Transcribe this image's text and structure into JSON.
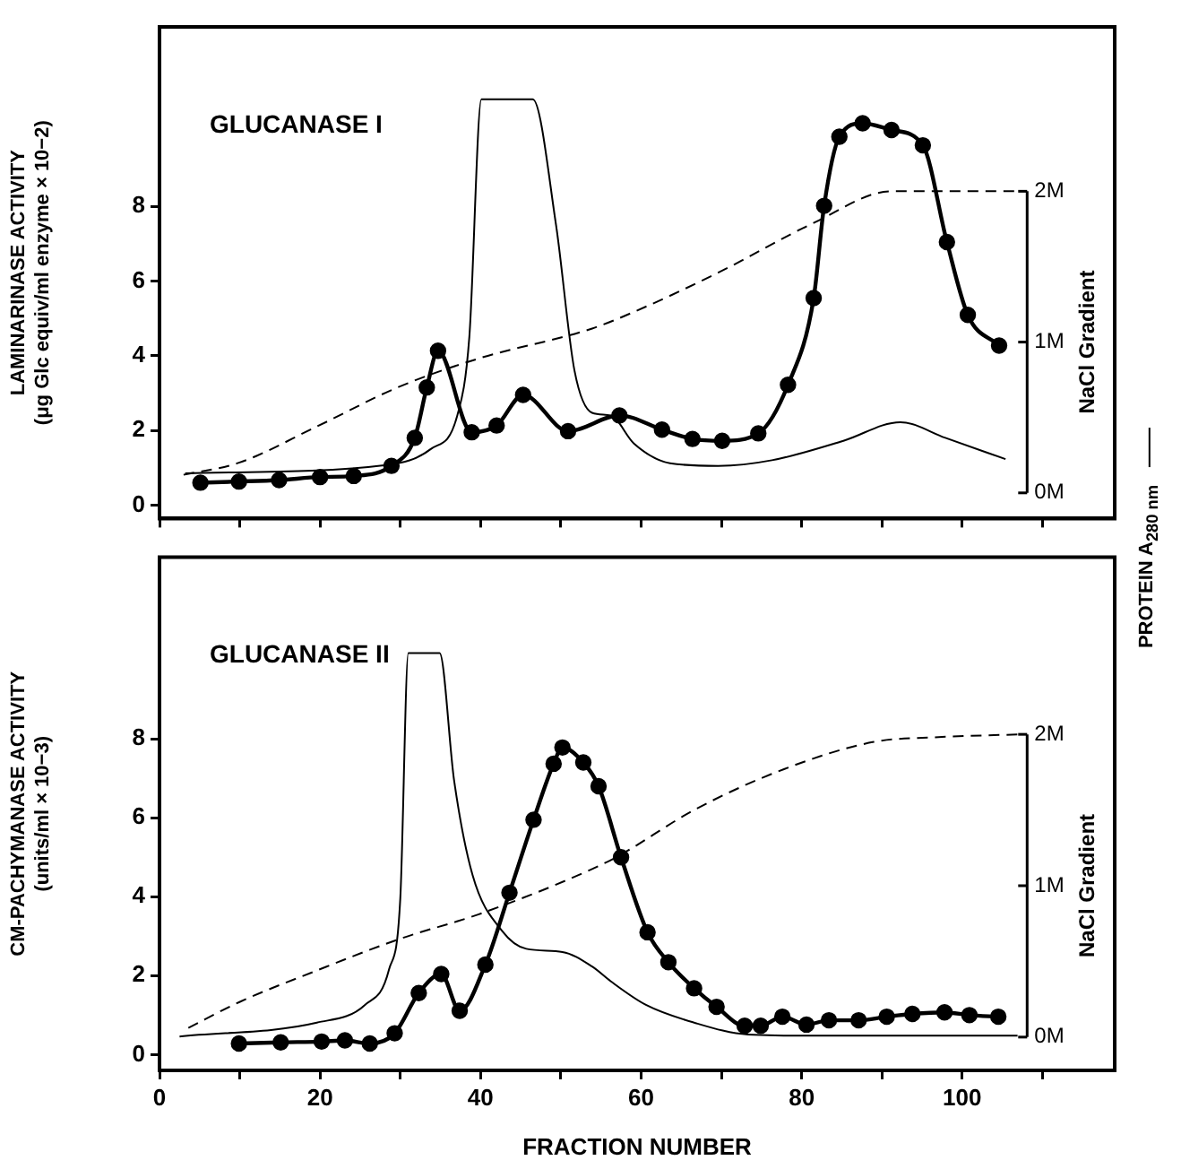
{
  "chart_data": [
    {
      "type": "line",
      "annotations": [
        "GLUCANASE I"
      ],
      "ylabel": "LAMINARINASE ACTIVITY\n(μg Glc equiv/ml enzyme × 10−2)",
      "y2label": "NaCl Gradient",
      "tick_labels": "y",
      "legend": "right",
      "xlim": [
        0,
        119
      ],
      "xticks": [
        {
          "value": 0,
          "label": null
        },
        {
          "value": 10,
          "label": null
        },
        {
          "value": 20,
          "label": null
        },
        {
          "value": 30,
          "label": null
        },
        {
          "value": 40,
          "label": null
        },
        {
          "value": 50,
          "label": null
        },
        {
          "value": 60,
          "label": null
        },
        {
          "value": 70,
          "label": null
        },
        {
          "value": 80,
          "label": null
        },
        {
          "value": 90,
          "label": null
        },
        {
          "value": 100,
          "label": null
        },
        {
          "value": 110,
          "label": null
        }
      ],
      "ylim": [
        -0.36,
        12.8
      ],
      "yticks": [
        0,
        2,
        4,
        6,
        8
      ],
      "y2lim": [
        -0.17,
        3.09
      ],
      "y2ticks": [
        {
          "value": 0,
          "label": "0M"
        },
        {
          "value": 1,
          "label": "1M"
        },
        {
          "value": 2,
          "label": "2M"
        }
      ],
      "series": [
        {
          "color": "#000000",
          "marker": "circle",
          "line_style": "solid",
          "x": [
            5.1,
            9.9,
            14.9,
            20,
            24.2,
            28.9,
            31.8,
            33.3,
            34.7,
            38.9,
            42,
            45.3,
            50.9,
            57.3,
            62.6,
            66.4,
            70.1,
            74.6,
            78.3,
            81.5,
            82.8,
            84.7,
            87.6,
            91.2,
            95.1,
            98.1,
            100.7,
            104.6
          ],
          "values": [
            0.6,
            0.63,
            0.67,
            0.75,
            0.78,
            1.05,
            1.8,
            3.15,
            4.13,
            1.95,
            2.13,
            2.95,
            1.98,
            2.4,
            2.02,
            1.77,
            1.72,
            1.92,
            3.22,
            5.54,
            8.01,
            9.86,
            10.22,
            10.04,
            9.63,
            7.04,
            5.09,
            4.27
          ]
        },
        {
          "name": "PROTEIN A$_{280 nm}$",
          "color": "#000000",
          "line_style": "solid",
          "x": [
            3.2,
            28.5,
            33.8,
            37.1,
            38.6,
            40.1,
            46.5,
            49.4,
            51.7,
            53.9,
            56.2,
            59.1,
            63.6,
            69.6,
            76.3,
            85.2,
            92.3,
            97.9,
            105.4
          ],
          "values": [
            0.85,
            1.08,
            1.5,
            2.4,
            4.5,
            10.86,
            10.86,
            7.5,
            3.6,
            2.47,
            2.4,
            1.65,
            1.12,
            1.05,
            1.2,
            1.72,
            2.22,
            1.8,
            1.23
          ]
        },
        {
          "color": "#000000",
          "line_style": "dashed",
          "axis": "y2",
          "x": [
            3,
            9.9,
            19.6,
            29.7,
            39.7,
            53.9,
            59.1,
            69.6,
            81.5,
            91.2,
            97.9,
            107.2
          ],
          "values": [
            0.12,
            0.2,
            0.44,
            0.7,
            0.89,
            1.09,
            1.2,
            1.46,
            1.79,
            2,
            2,
            2
          ]
        }
      ]
    },
    {
      "type": "line",
      "annotations": [
        "GLUCANASE II"
      ],
      "xlabel": "FRACTION NUMBER",
      "ylabel": "CM-PACHYMANASE ACTIVITY\n(units/ml × 10−3)",
      "y2label": "NaCl Gradient",
      "xlim": [
        0,
        119
      ],
      "xticks": [
        0,
        {
          "value": 10,
          "label": null
        },
        20,
        {
          "value": 30,
          "label": null
        },
        40,
        {
          "value": 50,
          "label": null
        },
        60,
        {
          "value": 70,
          "label": null
        },
        80,
        {
          "value": 90,
          "label": null
        },
        100,
        {
          "value": 110,
          "label": null
        }
      ],
      "ylim": [
        -0.4,
        12.6
      ],
      "yticks": [
        0,
        2,
        4,
        6,
        8
      ],
      "y2lim": [
        -0.22,
        3.17
      ],
      "y2ticks": [
        {
          "value": 0,
          "label": "0M"
        },
        {
          "value": 1,
          "label": "1M"
        },
        {
          "value": 2,
          "label": "2M"
        }
      ],
      "series": [
        {
          "color": "#000000",
          "marker": "circle",
          "line_style": "solid",
          "x": [
            9.9,
            15.1,
            20.2,
            23.1,
            26.2,
            29.3,
            32.3,
            35.1,
            37.4,
            40.6,
            43.6,
            46.6,
            49.1,
            50.2,
            52.8,
            54.7,
            57.5,
            60.8,
            63.4,
            66.6,
            69.4,
            72.9,
            74.9,
            77.6,
            80.6,
            83.4,
            87.1,
            90.6,
            93.8,
            97.8,
            100.9,
            104.5
          ],
          "values": [
            0.28,
            0.31,
            0.33,
            0.36,
            0.28,
            0.54,
            1.56,
            2.04,
            1.11,
            2.28,
            4.1,
            5.95,
            7.37,
            7.78,
            7.4,
            6.8,
            5,
            3.1,
            2.34,
            1.68,
            1.21,
            0.73,
            0.73,
            0.96,
            0.76,
            0.87,
            0.87,
            0.96,
            1.03,
            1.07,
            1,
            0.96
          ]
        },
        {
          "color": "#000000",
          "line_style": "solid",
          "x": [
            2.5,
            19.6,
            25.6,
            28.6,
            30,
            31,
            34.9,
            36.7,
            39,
            42.7,
            45.7,
            50.2,
            53.9,
            56.2,
            60.6,
            66.6,
            73.3,
            81.5,
            106.9
          ],
          "values": [
            0.46,
            0.81,
            1.26,
            2.16,
            3.96,
            10.17,
            10.17,
            6.95,
            4.55,
            3.13,
            2.68,
            2.6,
            2.23,
            1.86,
            1.26,
            0.81,
            0.51,
            0.48,
            0.48
          ]
        },
        {
          "color": "#000000",
          "line_style": "dashed",
          "axis": "y2",
          "x": [
            3.6,
            9.9,
            19.6,
            30,
            39.7,
            53.9,
            57.3,
            66.6,
            77.8,
            89,
            96.4,
            107.2
          ],
          "values": [
            0.06,
            0.23,
            0.44,
            0.65,
            0.81,
            1.11,
            1.2,
            1.5,
            1.77,
            1.95,
            1.98,
            2
          ]
        }
      ]
    }
  ]
}
